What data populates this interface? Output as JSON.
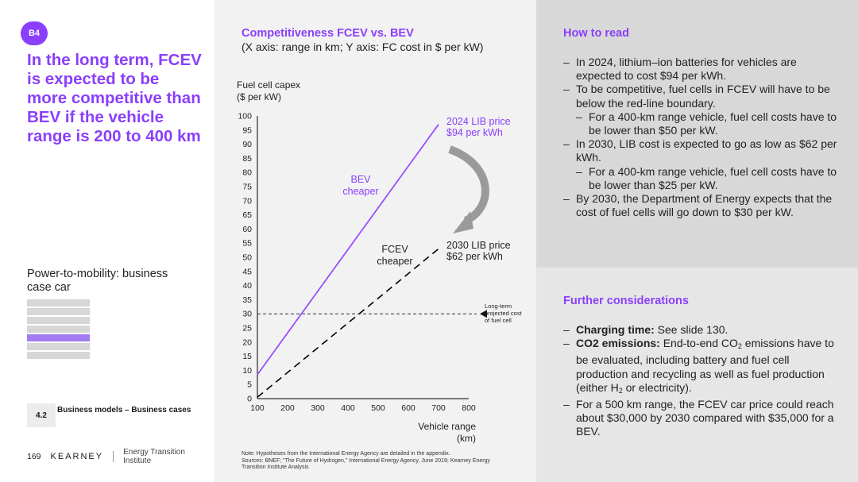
{
  "badge": "B4",
  "headline": "In the long term, FCEV is expected to be more competitive than BEV if the vehicle range is 200 to 400 km",
  "section_title": "Power-to-mobility: business case car",
  "progress": {
    "total_bars": 7,
    "active_index": 4
  },
  "section_number": "4.2",
  "section_label": "Business models – Business cases",
  "footer": {
    "page": "169",
    "brand": "KEARNEY",
    "institute": "Energy Transition Institute"
  },
  "colors": {
    "accent": "#8a3ffc",
    "bev_line": "#9b4dff",
    "fcev_line": "#000000"
  },
  "chart_title": "Competitiveness FCEV vs. BEV",
  "chart_subtitle": "(X axis: range in km; Y axis: FC cost in $ per kW)",
  "chart_data": {
    "type": "line",
    "ylabel": "Fuel cell capex ($ per kW)",
    "ylabel_lines": [
      "Fuel cell capex",
      "($ per kW)"
    ],
    "xlabel_lines": [
      "Vehicle range",
      "(km)"
    ],
    "xlim": [
      100,
      800
    ],
    "ylim": [
      0,
      100
    ],
    "x_ticks": [
      100,
      200,
      300,
      400,
      500,
      600,
      700,
      800
    ],
    "y_ticks": [
      0,
      5,
      10,
      15,
      20,
      25,
      30,
      35,
      40,
      45,
      50,
      55,
      60,
      65,
      70,
      75,
      80,
      85,
      90,
      95,
      100
    ],
    "series": [
      {
        "name": "2024 LIB price $94 per kWh",
        "style": "solid",
        "x": [
          100,
          700
        ],
        "y": [
          8.5,
          97
        ]
      },
      {
        "name": "2030 LIB price $62 per kWh",
        "style": "dashed",
        "x": [
          100,
          700
        ],
        "y": [
          0.5,
          53
        ]
      }
    ],
    "reference_line": {
      "y": 30,
      "label_lines": [
        "Long-term",
        "projected cost",
        "of fuel cell"
      ]
    },
    "annotations": {
      "lib2024": [
        "2024 LIB price",
        "$94 per kWh"
      ],
      "lib2030": [
        "2030 LIB price",
        "$62 per kWh"
      ],
      "bev": [
        "BEV",
        "cheaper"
      ],
      "fcev": [
        "FCEV",
        "cheaper"
      ]
    }
  },
  "note_lines": [
    "Note: Hypotheses from the International Energy Agency are detailed in the appendix.",
    "Sources: BNEF; \"The Future of Hydrogen,\" International Energy Agency, June 2019; Kearney Energy",
    "Transition Institute Analysis"
  ],
  "how_to_read": {
    "title": "How to read",
    "items": [
      {
        "level": 1,
        "text": "In 2024, lithium–ion batteries for vehicles are expected to cost $94 per kWh."
      },
      {
        "level": 1,
        "text": "To be competitive, fuel cells in FCEV will have to be below the red-line boundary."
      },
      {
        "level": 2,
        "text": "For a 400-km range vehicle, fuel cell costs have to be lower than $50 per kW."
      },
      {
        "level": 1,
        "text": "In 2030, LIB cost is expected to go as low as $62 per kWh."
      },
      {
        "level": 2,
        "text": "For a 400-km range vehicle, fuel cell costs have to be lower than $25 per kW."
      },
      {
        "level": 1,
        "text": "By 2030, the Department of Energy expects that the cost of fuel cells will go down to $30 per kW."
      }
    ]
  },
  "further": {
    "title": "Further considerations",
    "charging_bold": "Charging time:",
    "charging_text": " See slide 130.",
    "co2_bold": "CO2 emissions:",
    "co2_text_a": " End-to-end CO",
    "co2_sub": "2",
    "co2_text_b": " emissions have to be evaluated, including battery and fuel cell production and recycling as well as fuel production (either H",
    "co2_sub2": "2",
    "co2_text_c": " or electricity).",
    "price_text": "For a 500 km range, the FCEV car price could reach about $30,000 by 2030 compared with $35,000 for a BEV."
  }
}
